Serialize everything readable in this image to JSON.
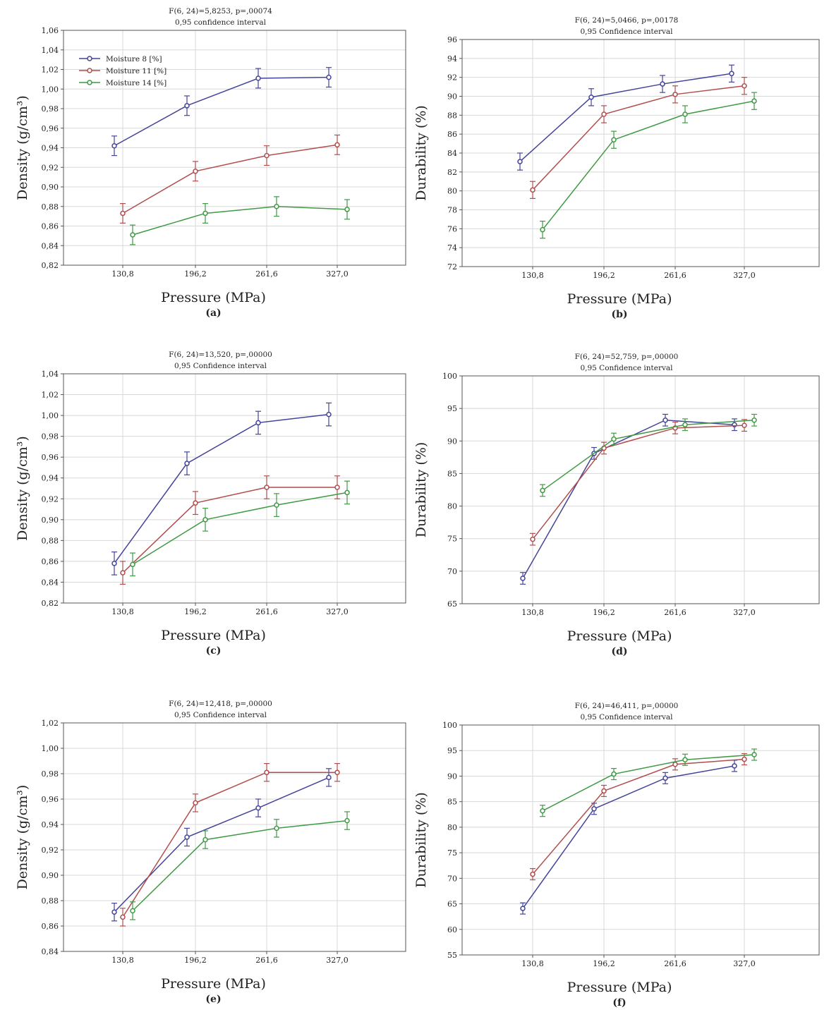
{
  "colors": {
    "moisture8": "#44449a",
    "moisture11": "#b14d4d",
    "moisture14": "#3f9a43",
    "grid": "#d8d8d8",
    "axis": "#555555",
    "text": "#222222"
  },
  "chart_data": [
    {
      "type": "line",
      "panel_label": "(a)",
      "title": "F(6, 24)=5,8253, p=,00074",
      "subtitle": "0,95 confidence interval",
      "xlabel": "Pressure (MPa)",
      "ylabel": "Density (g/cm³)",
      "categories": [
        "130,8",
        "196,2",
        "261,6",
        "327,0"
      ],
      "ylim": [
        0.82,
        1.06
      ],
      "yticks": [
        "0,82",
        "0,84",
        "0,86",
        "0,88",
        "0,90",
        "0,92",
        "0,94",
        "0,96",
        "0,98",
        "1,00",
        "1,02",
        "1,04",
        "1,06"
      ],
      "grid": true,
      "legend": "top-left",
      "series": [
        {
          "name": "Moisture 8 [%]",
          "values": [
            0.942,
            0.983,
            1.011,
            1.012
          ],
          "error": 0.01
        },
        {
          "name": "Moisture 11 [%]",
          "values": [
            0.873,
            0.916,
            0.932,
            0.943
          ],
          "error": 0.01
        },
        {
          "name": "Moisture 14 [%]",
          "values": [
            0.851,
            0.873,
            0.88,
            0.877
          ],
          "error": 0.01
        }
      ]
    },
    {
      "type": "line",
      "panel_label": "(b)",
      "title": "F(6, 24)=5,0466, p=,00178",
      "subtitle": "0,95 Confidence interval",
      "xlabel": "Pressure (MPa)",
      "ylabel": "Durability (%)",
      "categories": [
        "130,8",
        "196,2",
        "261,6",
        "327,0"
      ],
      "ylim": [
        72,
        96
      ],
      "yticks": [
        "72",
        "74",
        "76",
        "78",
        "80",
        "82",
        "84",
        "86",
        "88",
        "90",
        "92",
        "94",
        "96"
      ],
      "grid": true,
      "series": [
        {
          "name": "Moisture 8 [%]",
          "values": [
            83.1,
            89.9,
            91.3,
            92.4
          ],
          "error": 0.9
        },
        {
          "name": "Moisture 11 [%]",
          "values": [
            80.1,
            88.1,
            90.2,
            91.1
          ],
          "error": 0.9
        },
        {
          "name": "Moisture 14 [%]",
          "values": [
            75.9,
            85.4,
            88.1,
            89.5
          ],
          "error": 0.9
        }
      ]
    },
    {
      "type": "line",
      "panel_label": "(c)",
      "title": "F(6, 24)=13,520, p=,00000",
      "subtitle": "0,95 Confidence interval",
      "xlabel": "Pressure (MPa)",
      "ylabel": "Density (g/cm³)",
      "categories": [
        "130,8",
        "196,2",
        "261,6",
        "327,0"
      ],
      "ylim": [
        0.82,
        1.04
      ],
      "yticks": [
        "0,82",
        "0,84",
        "0,86",
        "0,88",
        "0,90",
        "0,92",
        "0,94",
        "0,96",
        "0,98",
        "1,00",
        "1,02",
        "1,04"
      ],
      "grid": true,
      "series": [
        {
          "name": "Moisture 8 [%]",
          "values": [
            0.858,
            0.954,
            0.993,
            1.001
          ],
          "error": 0.011
        },
        {
          "name": "Moisture 11 [%]",
          "values": [
            0.849,
            0.916,
            0.931,
            0.931
          ],
          "error": 0.011
        },
        {
          "name": "Moisture 14 [%]",
          "values": [
            0.857,
            0.9,
            0.914,
            0.926
          ],
          "error": 0.011
        }
      ]
    },
    {
      "type": "line",
      "panel_label": "(d)",
      "title": "F(6, 24)=52,759, p=,00000",
      "subtitle": "0,95 Confidence interval",
      "xlabel": "Pressure (MPa)",
      "ylabel": "Durability (%)",
      "categories": [
        "130,8",
        "196,2",
        "261,6",
        "327,0"
      ],
      "ylim": [
        65,
        100
      ],
      "yticks": [
        "65",
        "70",
        "75",
        "80",
        "85",
        "90",
        "95",
        "100"
      ],
      "grid": true,
      "series": [
        {
          "name": "Moisture 8 [%]",
          "values": [
            68.9,
            88.1,
            93.2,
            92.5
          ],
          "error": 0.9
        },
        {
          "name": "Moisture 11 [%]",
          "values": [
            74.9,
            88.9,
            92.0,
            92.4
          ],
          "error": 0.9
        },
        {
          "name": "Moisture 14 [%]",
          "values": [
            82.4,
            90.3,
            92.5,
            93.2
          ],
          "error": 0.9
        }
      ]
    },
    {
      "type": "line",
      "panel_label": "(e)",
      "title": "F(6, 24)=12,418, p=,00000",
      "subtitle": "0,95 Confidence interval",
      "xlabel": "Pressure (MPa)",
      "ylabel": "Density (g/cm³)",
      "categories": [
        "130,8",
        "196,2",
        "261,6",
        "327,0"
      ],
      "ylim": [
        0.84,
        1.02
      ],
      "yticks": [
        "0,84",
        "0,86",
        "0,88",
        "0,90",
        "0,92",
        "0,94",
        "0,96",
        "0,98",
        "1,00",
        "1,02"
      ],
      "grid": true,
      "series": [
        {
          "name": "Moisture 8 [%]",
          "values": [
            0.871,
            0.93,
            0.953,
            0.977
          ],
          "error": 0.007
        },
        {
          "name": "Moisture 11 [%]",
          "values": [
            0.867,
            0.957,
            0.981,
            0.981
          ],
          "error": 0.007
        },
        {
          "name": "Moisture 14 [%]",
          "values": [
            0.872,
            0.928,
            0.937,
            0.943
          ],
          "error": 0.007
        }
      ]
    },
    {
      "type": "line",
      "panel_label": "(f)",
      "title": "F(6, 24)=46,411, p=,00000",
      "subtitle": "0,95 Confidence interval",
      "xlabel": "Pressure (MPa)",
      "ylabel": "Durability (%)",
      "categories": [
        "130,8",
        "196,2",
        "261,6",
        "327,0"
      ],
      "ylim": [
        55,
        100
      ],
      "yticks": [
        "55",
        "60",
        "65",
        "70",
        "75",
        "80",
        "85",
        "90",
        "95",
        "100"
      ],
      "grid": true,
      "series": [
        {
          "name": "Moisture 8 [%]",
          "values": [
            64.1,
            83.6,
            89.6,
            92.0
          ],
          "error": 1.1
        },
        {
          "name": "Moisture 11 [%]",
          "values": [
            70.8,
            87.1,
            92.3,
            93.3
          ],
          "error": 1.1
        },
        {
          "name": "Moisture 14 [%]",
          "values": [
            83.2,
            90.4,
            93.2,
            94.2
          ],
          "error": 1.1
        }
      ]
    }
  ]
}
